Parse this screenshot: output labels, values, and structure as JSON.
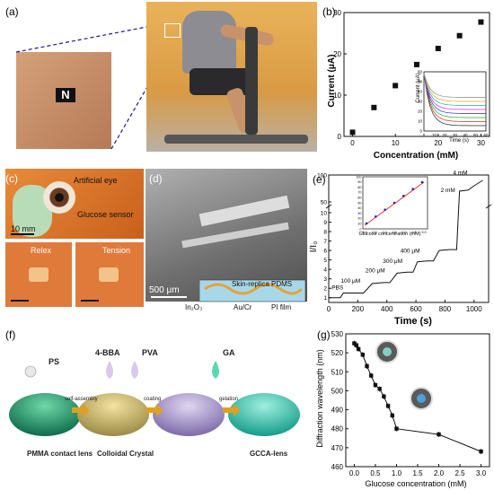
{
  "panels": {
    "a": {
      "label": "(a)",
      "tattoo_text": "N"
    },
    "b": {
      "label": "(b)",
      "inset_xlabel": "Time (s)",
      "inset_ylabel": "Current (μA)",
      "inset_xticks": [
        "0",
        "10",
        "20",
        "30",
        "40",
        "50",
        "60"
      ],
      "inset_yticks": [
        "0",
        "10",
        "20",
        "30",
        "40",
        "50",
        "60"
      ]
    },
    "c": {
      "label": "(c)",
      "artificial_eye": "Artificial eye",
      "glucose_sensor": "Glucose sensor",
      "scale": "10 mm",
      "relax": "Relex",
      "tension": "Tension"
    },
    "d": {
      "label": "(d)",
      "scale": "500 μm",
      "skin_replica": "Skin-replica PDMS",
      "in2o3": "In₂O₃",
      "aucr": "Au/Cr",
      "pi_film": "PI film"
    },
    "e": {
      "label": "(e)",
      "annotations": [
        "PBS",
        "100 μM",
        "200 μM",
        "300 μM",
        "400 μM",
        "2 mM",
        "4 mM"
      ],
      "inset_xlabel": "Glucose concentration (mM)",
      "inset_xticks": [
        "0.0",
        "0.5",
        "1.0",
        "1.5",
        "2.0",
        "2.5",
        "3.0"
      ],
      "inset_yticks": [
        "0",
        "10",
        "20",
        "30",
        "40",
        "50",
        "60",
        "70",
        "80",
        "90",
        "100"
      ]
    },
    "f": {
      "label": "(f)",
      "ps": "PS",
      "bba": "4-BBA",
      "pva": "PVA",
      "ga": "GA",
      "self_assembly": "self-assembly",
      "coating": "coating",
      "gelation": "gelation",
      "pmma": "PMMA contact lens",
      "colloidal": "Colloidal Crystal",
      "gcca": "GCCA-lens"
    },
    "g": {
      "label": "(g)"
    }
  },
  "chart_data": [
    {
      "panel": "b",
      "type": "scatter",
      "xlabel": "Concentration (mM)",
      "ylabel": "Current (μA)",
      "xlim": [
        -2,
        32
      ],
      "ylim": [
        0,
        30
      ],
      "xticks": [
        "0",
        "10",
        "20",
        "30"
      ],
      "yticks": [
        "0",
        "10",
        "20",
        "30"
      ],
      "x": [
        0,
        5,
        10,
        15,
        20,
        25,
        30
      ],
      "values": [
        1.0,
        7.0,
        12.3,
        17.4,
        21.3,
        24.4,
        27.7
      ],
      "marker_color": "#111111"
    },
    {
      "panel": "e",
      "type": "line",
      "xlabel": "Time (s)",
      "ylabel": "I/I₀",
      "xlim": [
        0,
        1100
      ],
      "xticks": [
        "0",
        "200",
        "400",
        "600",
        "800",
        "1000"
      ],
      "yticks": [
        "1",
        "2",
        "3",
        "4",
        "5",
        "6",
        "7",
        "8",
        "9",
        "10",
        "50",
        "100"
      ],
      "series": [
        {
          "x": [
            0,
            80,
            100,
            180,
            240,
            300,
            380,
            420,
            470,
            540,
            580,
            610,
            680,
            720,
            760,
            830,
            880,
            900,
            960,
            1000,
            1060
          ],
          "values": [
            1.0,
            1.0,
            1.5,
            1.5,
            1.5,
            2.5,
            2.6,
            2.6,
            3.6,
            3.7,
            3.7,
            4.8,
            4.9,
            4.9,
            6.0,
            6.1,
            6.1,
            70,
            72,
            80,
            90
          ]
        }
      ],
      "line_color": "#111111"
    },
    {
      "panel": "g",
      "type": "line",
      "xlabel": "Glucose concentration (mM)",
      "ylabel": "Diffraction wavelength (nm)",
      "xlim": [
        -0.2,
        3.2
      ],
      "ylim": [
        460,
        530
      ],
      "xticks": [
        "0.0",
        "0.5",
        "1.0",
        "1.5",
        "2.0",
        "2.5",
        "3.0"
      ],
      "yticks": [
        "460",
        "470",
        "480",
        "490",
        "500",
        "510",
        "520",
        "530"
      ],
      "x": [
        0.0,
        0.05,
        0.1,
        0.2,
        0.3,
        0.4,
        0.5,
        0.6,
        0.7,
        0.8,
        0.9,
        1.0,
        2.0,
        3.0
      ],
      "values": [
        525,
        524,
        522,
        519,
        513,
        508,
        503,
        501,
        497,
        492,
        487,
        480,
        477,
        468
      ],
      "marker_color": "#111111"
    }
  ],
  "colors": {
    "skin": "#c8926b",
    "photo_bg": "#d9b38a",
    "orange_bg": "#e0762c",
    "sem": "#8a8a8a",
    "lens_green": "#1f9a72",
    "lens_teal": "#2fb7a3",
    "dashed": "#1a1a8a"
  }
}
